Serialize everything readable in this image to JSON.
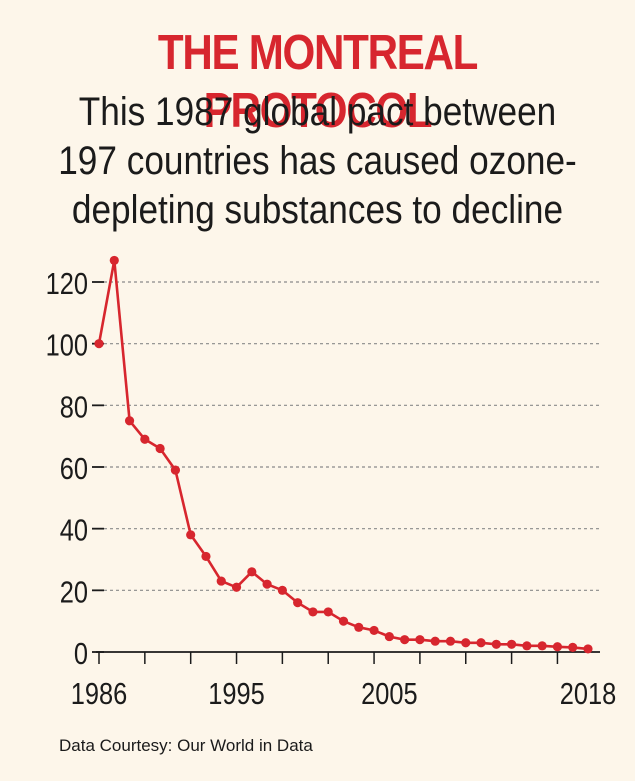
{
  "header": {
    "title": "THE MONTREAL PROTOCOL",
    "subtitle_lines": [
      "This 1987 global pact between",
      "197 countries has caused ozone-",
      "depleting substances to decline"
    ]
  },
  "footer": {
    "source": "Data Courtesy: Our World in Data"
  },
  "colors": {
    "accent": "#d7262e",
    "text": "#1b1b1b",
    "background": "#fdf6ea"
  },
  "chart_data": {
    "type": "line",
    "x": [
      1986,
      1987,
      1988,
      1989,
      1990,
      1991,
      1992,
      1993,
      1994,
      1995,
      1996,
      1997,
      1998,
      1999,
      2000,
      2001,
      2002,
      2003,
      2004,
      2005,
      2006,
      2007,
      2008,
      2009,
      2010,
      2011,
      2012,
      2013,
      2014,
      2015,
      2016,
      2017,
      2018
    ],
    "series": [
      {
        "values": [
          100,
          127,
          75,
          69,
          66,
          59,
          38,
          31,
          23,
          21,
          26,
          22,
          20,
          16,
          13,
          13,
          10,
          8,
          7,
          5,
          4,
          4,
          3.5,
          3.5,
          3,
          3,
          2.5,
          2.5,
          2,
          2,
          1.7,
          1.5,
          1
        ]
      }
    ],
    "xticks": [
      1986,
      1995,
      2005,
      2018
    ],
    "yticks": [
      0,
      20,
      40,
      60,
      80,
      100,
      120
    ],
    "xlim": [
      1986,
      2018
    ],
    "ylim": [
      0,
      120
    ],
    "grid": "horizontal dashed",
    "xlabel": "",
    "ylabel": ""
  }
}
